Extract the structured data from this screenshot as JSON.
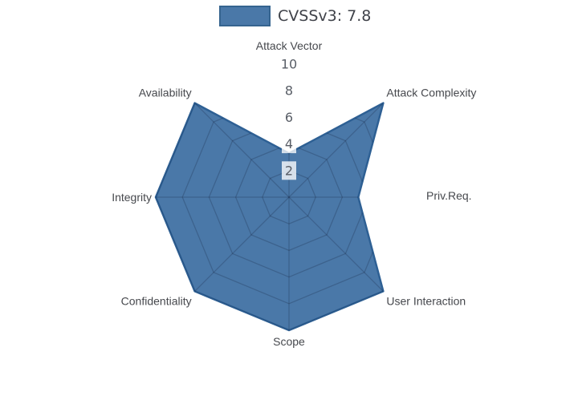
{
  "page": {
    "background": "#ffffff"
  },
  "legend": {
    "label": "CVSSv3: 7.8",
    "swatch_color": "#4a78a8",
    "swatch_border": "#35648f"
  },
  "chart_data": {
    "type": "radar",
    "title": "CVSSv3: 7.8",
    "categories": [
      "Attack Vector",
      "Attack Complexity",
      "Priv.Req.",
      "User Interaction",
      "Scope",
      "Confidentiality",
      "Integrity",
      "Availability"
    ],
    "series": [
      {
        "name": "CVSSv3: 7.8",
        "values": [
          3.3,
          10,
          5.2,
          10,
          10,
          10,
          10,
          10
        ]
      }
    ],
    "radial_ticks": [
      2,
      4,
      6,
      8,
      10
    ],
    "radial_range": [
      0,
      10
    ],
    "start_axis": "top",
    "direction": "clockwise",
    "grid": "spider-web, straight polygon rings, visible only over the filled area",
    "legend_position": "top-center",
    "fill_color": "#4a78a8",
    "line_color": "#2e6094",
    "grid_line_color": "rgba(0,0,20,0.18)",
    "tick_label_color": "#585d66",
    "tick_label_bg": "rgba(255,255,255,0.78)",
    "category_label_color": "#46484d"
  }
}
